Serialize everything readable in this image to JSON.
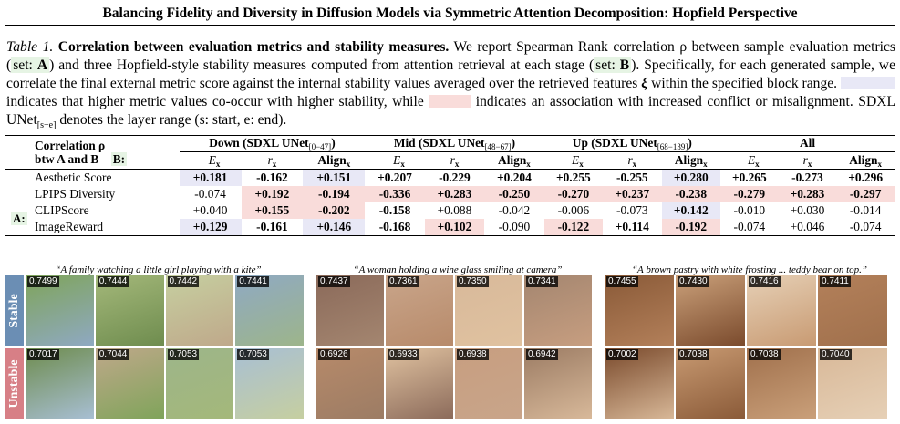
{
  "header": {
    "title": "Balancing Fidelity and Diversity in Diffusion Models via Symmetric Attention Decomposition: Hopfield Perspective"
  },
  "caption": {
    "label": "Table 1.",
    "title": "Correlation between evaluation metrics and stability measures.",
    "p1": " We report Spearman Rank correlation ρ between sample evaluation metrics (",
    "setA_prefix": "set: ",
    "setA": "A",
    "p2": ") and three Hopfield-style stability measures computed from attention retrieval at each stage (",
    "setB_prefix": "set: ",
    "setB": "B",
    "p3": "). Specifically, for each generated sample, we correlate the final external metric score against the internal stability values averaged over the retrieved features ",
    "xi": "ξ",
    "p4": " within the specified block range.",
    "p5": " indicates that higher metric values co-occur with higher stability, while ",
    "p6": " indicates an association with increased conflict or misalignment. SDXL UNet",
    "range_sub": "[s−e]",
    "p7": " denotes the layer range (s: start, e: end)."
  },
  "table": {
    "corner_line1": "Correlation ρ",
    "corner_line2": "btw A and B",
    "b_label": "B:",
    "a_label": "A:",
    "groups": [
      {
        "name": "Down (SDXL UNet",
        "sub": "[0−47]",
        "close": ")"
      },
      {
        "name": "Mid (SDXL UNet",
        "sub": "[48−67]",
        "close": ")"
      },
      {
        "name": "Up (SDXL UNet",
        "sub": "[68−139]",
        "close": ")"
      },
      {
        "name": "All",
        "sub": "",
        "close": ""
      }
    ],
    "col_headers": [
      "−E",
      "r",
      "Align"
    ],
    "col_sub": "x",
    "rows": [
      {
        "metric": "Aesthetic Score",
        "values": [
          "+0.181",
          "-0.162",
          "+0.151",
          "+0.207",
          "-0.229",
          "+0.204",
          "+0.255",
          "-0.255",
          "+0.280",
          "+0.265",
          "-0.273",
          "+0.296"
        ],
        "bold": [
          1,
          1,
          1,
          1,
          1,
          1,
          1,
          1,
          1,
          1,
          1,
          1
        ],
        "hl": [
          "p",
          "",
          "p",
          "",
          "",
          "",
          "",
          "",
          "p",
          "",
          "",
          ""
        ]
      },
      {
        "metric": "LPIPS Diversity",
        "values": [
          "-0.074",
          "+0.192",
          "-0.194",
          "-0.336",
          "+0.283",
          "-0.250",
          "-0.270",
          "+0.237",
          "-0.238",
          "-0.279",
          "+0.283",
          "-0.297"
        ],
        "bold": [
          0,
          1,
          1,
          1,
          1,
          1,
          1,
          1,
          1,
          1,
          1,
          1
        ],
        "hl": [
          "",
          "n",
          "n",
          "n",
          "n",
          "n",
          "n",
          "n",
          "n",
          "n",
          "n",
          "n"
        ]
      },
      {
        "metric": "CLIPScore",
        "values": [
          "+0.040",
          "+0.155",
          "-0.202",
          "-0.158",
          "+0.088",
          "-0.042",
          "-0.006",
          "-0.073",
          "+0.142",
          "-0.010",
          "+0.030",
          "-0.014"
        ],
        "bold": [
          0,
          1,
          1,
          1,
          0,
          0,
          0,
          0,
          1,
          0,
          0,
          0
        ],
        "hl": [
          "",
          "n",
          "n",
          "",
          "",
          "",
          "",
          "",
          "p",
          "",
          "",
          ""
        ]
      },
      {
        "metric": "ImageReward",
        "values": [
          "+0.129",
          "-0.161",
          "+0.146",
          "-0.168",
          "+0.102",
          "-0.090",
          "-0.122",
          "+0.114",
          "-0.192",
          "-0.074",
          "+0.046",
          "-0.074"
        ],
        "bold": [
          1,
          1,
          1,
          1,
          1,
          0,
          1,
          1,
          1,
          0,
          0,
          0
        ],
        "hl": [
          "p",
          "",
          "p",
          "",
          "n",
          "",
          "n",
          "",
          "n",
          "",
          "",
          ""
        ]
      }
    ]
  },
  "figure": {
    "row_labels": [
      "Stable",
      "Unstable"
    ],
    "panels": [
      {
        "caption": "“A family watching a little girl playing with a kite”",
        "stable": [
          "0.7499",
          "0.7444",
          "0.7442",
          "0.7441"
        ],
        "unstable": [
          "0.7017",
          "0.7044",
          "0.7053",
          "0.7053"
        ]
      },
      {
        "caption": "“A woman holding a wine glass smiling at camera”",
        "stable": [
          "0.7437",
          "0.7361",
          "0.7350",
          "0.7341"
        ],
        "unstable": [
          "0.6926",
          "0.6933",
          "0.6938",
          "0.6942"
        ]
      },
      {
        "caption": "“A brown pastry with white frosting ... teddy bear on top.”",
        "stable": [
          "0.7455",
          "0.7430",
          "0.7416",
          "0.7411"
        ],
        "unstable": [
          "0.7002",
          "0.7038",
          "0.7038",
          "0.7040"
        ]
      }
    ]
  },
  "colors": {
    "positive": "#e8e8f6",
    "negative": "#f9dcda",
    "set_highlight": "#e6f4e4",
    "stable_label": "#6b8eb4",
    "unstable_label": "#d77f86"
  }
}
